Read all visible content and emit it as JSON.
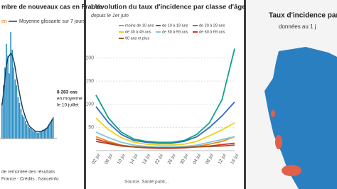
{
  "chart_data": [
    {
      "type": "bar",
      "title": "mbre de nouveaux cas en France",
      "legend_prefix": "en",
      "values": [
        30,
        45,
        60,
        80,
        70,
        55,
        90,
        75,
        60,
        50,
        45,
        35,
        30,
        25,
        20,
        18,
        15,
        12,
        10,
        9,
        8,
        7,
        6,
        6,
        5,
        5,
        6,
        6,
        7,
        8,
        9,
        10,
        12,
        14,
        16,
        18
      ],
      "color": "#2a8fc4",
      "line": {
        "name": "Moyenne glissante sur 7 jours",
        "color": "#1d3d5c",
        "values": [
          28,
          38,
          50,
          62,
          68,
          70,
          72,
          70,
          66,
          60,
          52,
          45,
          38,
          32,
          26,
          22,
          18,
          15,
          12,
          10,
          9,
          8,
          7,
          6,
          6,
          6,
          6,
          6,
          7,
          7,
          8,
          9,
          11,
          13,
          15,
          17
        ]
      },
      "annotation": [
        "8 283 cas",
        "en moyenne",
        "le 10 juillet"
      ],
      "footer": [
        "de remontée des résultats",
        "France - Crédits : franceinfo"
      ]
    },
    {
      "type": "line",
      "title": "L'évolution du taux d'incidence par classe d'âge",
      "subtitle": "depuis le 1er juin",
      "categories": [
        "02 jui",
        "06 jui",
        "10 jui",
        "14 jui",
        "18 jui",
        "22 jui",
        "26 jui",
        "30 jui",
        "04 jul",
        "08 jul",
        "12 jul",
        "16 jul"
      ],
      "ylim": [
        0,
        230
      ],
      "yticks": [
        50,
        100,
        150,
        200
      ],
      "grid": true,
      "source": "Source. Santé publi...",
      "series": [
        {
          "name": "moins de 10 ans",
          "color": "#f08a1c",
          "values": [
            30,
            20,
            12,
            8,
            6,
            5,
            5,
            6,
            9,
            14,
            20,
            30
          ]
        },
        {
          "name": "de 10 à 19 ans",
          "color": "#2f6fc0",
          "values": [
            95,
            60,
            35,
            22,
            18,
            16,
            16,
            20,
            30,
            50,
            75,
            105
          ]
        },
        {
          "name": "de 20 à 29 ans",
          "color": "#16a08a",
          "values": [
            120,
            70,
            40,
            25,
            20,
            18,
            18,
            22,
            35,
            60,
            110,
            220
          ]
        },
        {
          "name": "de 30 à 49 ans",
          "color": "#f2cf1d",
          "values": [
            70,
            45,
            28,
            18,
            14,
            12,
            12,
            14,
            20,
            32,
            45,
            60
          ]
        },
        {
          "name": "de 50 à 59 ans",
          "color": "#7ec8e3",
          "values": [
            40,
            28,
            18,
            12,
            9,
            8,
            8,
            9,
            12,
            18,
            24,
            30
          ]
        },
        {
          "name": "de 60 à 69 ans",
          "color": "#d8352a",
          "values": [
            25,
            17,
            11,
            8,
            6,
            5,
            5,
            6,
            8,
            10,
            13,
            16
          ]
        },
        {
          "name": "90 ans et plus",
          "color": "#a0522d",
          "values": [
            20,
            15,
            10,
            8,
            7,
            6,
            6,
            7,
            8,
            9,
            10,
            12
          ]
        }
      ]
    }
  ],
  "map_panel": {
    "title": "Taux d'incidence par",
    "subtitle": "données au 1 j"
  }
}
